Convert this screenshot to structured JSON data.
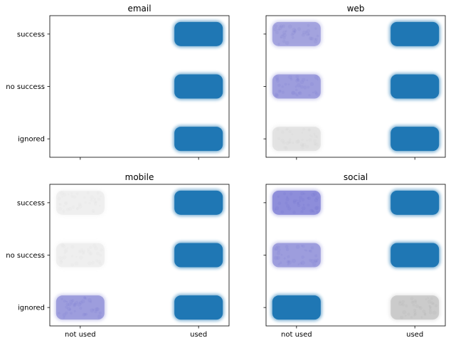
{
  "chart_data": {
    "type": "scatter",
    "description_style": "2x2 grid of jittered categorical strip plots; point opacity encodes density",
    "x_categories": [
      "not used",
      "used"
    ],
    "y_categories": [
      "success",
      "no success",
      "ignored"
    ],
    "shared_x": true,
    "shared_y": true,
    "grid": false,
    "panels": [
      {
        "title": "email",
        "clusters": [
          {
            "x": "used",
            "y": "success",
            "tone": "#1f77b4",
            "level": 1.0
          },
          {
            "x": "used",
            "y": "no success",
            "tone": "#1f77b4",
            "level": 1.0
          },
          {
            "x": "used",
            "y": "ignored",
            "tone": "#1f77b4",
            "level": 1.0
          }
        ]
      },
      {
        "title": "web",
        "clusters": [
          {
            "x": "not used",
            "y": "success",
            "tone": "#7a7ad0",
            "level": 0.55
          },
          {
            "x": "not used",
            "y": "no success",
            "tone": "#7a7ad0",
            "level": 0.6
          },
          {
            "x": "not used",
            "y": "ignored",
            "tone": "#bdbdbd",
            "level": 0.3
          },
          {
            "x": "used",
            "y": "success",
            "tone": "#1f77b4",
            "level": 1.0
          },
          {
            "x": "used",
            "y": "no success",
            "tone": "#1f77b4",
            "level": 1.0
          },
          {
            "x": "used",
            "y": "ignored",
            "tone": "#1f77b4",
            "level": 1.0
          }
        ]
      },
      {
        "title": "mobile",
        "clusters": [
          {
            "x": "not used",
            "y": "success",
            "tone": "#cfcfcf",
            "level": 0.22
          },
          {
            "x": "not used",
            "y": "no success",
            "tone": "#cfcfcf",
            "level": 0.22
          },
          {
            "x": "not used",
            "y": "ignored",
            "tone": "#7a7ad0",
            "level": 0.6
          },
          {
            "x": "used",
            "y": "success",
            "tone": "#1f77b4",
            "level": 1.0
          },
          {
            "x": "used",
            "y": "no success",
            "tone": "#1f77b4",
            "level": 1.0
          },
          {
            "x": "used",
            "y": "ignored",
            "tone": "#1f77b4",
            "level": 1.0
          }
        ]
      },
      {
        "title": "social",
        "clusters": [
          {
            "x": "not used",
            "y": "success",
            "tone": "#6d6dcf",
            "level": 0.65
          },
          {
            "x": "not used",
            "y": "no success",
            "tone": "#7a7ad0",
            "level": 0.6
          },
          {
            "x": "not used",
            "y": "ignored",
            "tone": "#1f77b4",
            "level": 1.0
          },
          {
            "x": "used",
            "y": "success",
            "tone": "#1f77b4",
            "level": 1.0
          },
          {
            "x": "used",
            "y": "no success",
            "tone": "#1f77b4",
            "level": 1.0
          },
          {
            "x": "used",
            "y": "ignored",
            "tone": "#9e9e9e",
            "level": 0.4
          }
        ]
      }
    ]
  }
}
